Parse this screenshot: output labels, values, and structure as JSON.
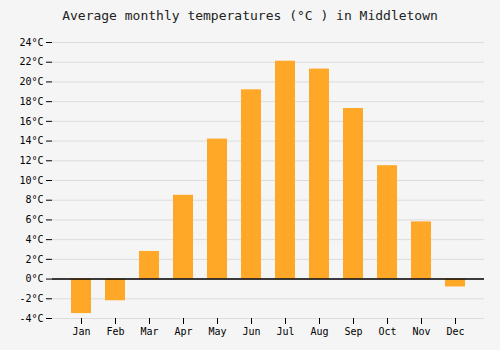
{
  "chart_data": {
    "type": "bar",
    "title": "Average monthly temperatures (°C ) in Middletown",
    "categories": [
      "Jan",
      "Feb",
      "Mar",
      "Apr",
      "May",
      "Jun",
      "Jul",
      "Aug",
      "Sep",
      "Oct",
      "Nov",
      "Dec"
    ],
    "values": [
      -3.5,
      -2.2,
      2.8,
      8.5,
      14.2,
      19.2,
      22.1,
      21.3,
      17.3,
      11.5,
      5.8,
      -0.8
    ],
    "color": "#FFA726",
    "ylim": [
      -4,
      24
    ],
    "yticks": [
      {
        "value": -4,
        "label": "-4°C"
      },
      {
        "value": -2,
        "label": "-2°C"
      },
      {
        "value": 0,
        "label": "0°C"
      },
      {
        "value": 2,
        "label": "2°C"
      },
      {
        "value": 4,
        "label": "4°C"
      },
      {
        "value": 6,
        "label": "6°C"
      },
      {
        "value": 8,
        "label": "8°C"
      },
      {
        "value": 10,
        "label": "10°C"
      },
      {
        "value": 12,
        "label": "12°C"
      },
      {
        "value": 14,
        "label": "14°C"
      },
      {
        "value": 16,
        "label": "16°C"
      },
      {
        "value": 18,
        "label": "18°C"
      },
      {
        "value": 20,
        "label": "20°C"
      },
      {
        "value": 22,
        "label": "22°C"
      },
      {
        "value": 24,
        "label": "24°C"
      }
    ],
    "grid": true
  }
}
